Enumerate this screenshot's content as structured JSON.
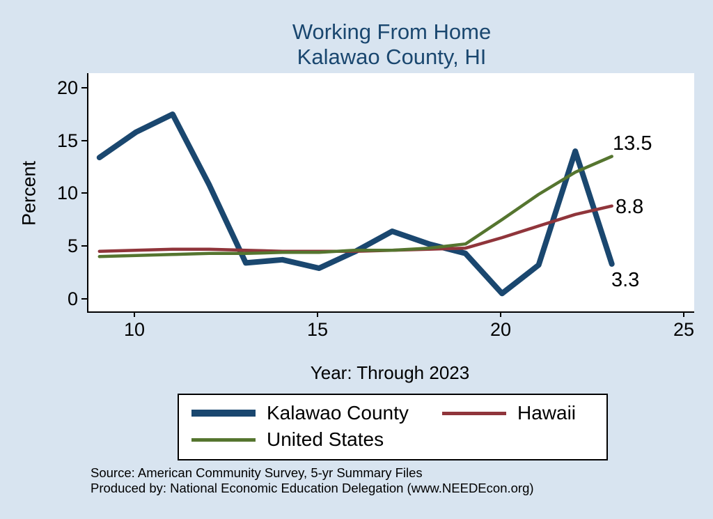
{
  "title": {
    "line1": "Working From Home",
    "line2": "Kalawao County, HI"
  },
  "axes": {
    "y_label": "Percent",
    "x_label": "Year: Through 2023",
    "y_tick_labels": [
      "20",
      "15",
      "10",
      "5",
      "0"
    ],
    "x_tick_labels": [
      "10",
      "15",
      "20",
      "25"
    ]
  },
  "end_labels": {
    "united_states": "13.5",
    "hawaii": "8.8",
    "kalawao": "3.3"
  },
  "legend": {
    "items": [
      {
        "label": "Kalawao County"
      },
      {
        "label": "Hawaii"
      },
      {
        "label": "United States"
      }
    ]
  },
  "source": {
    "line1": "Source: American Community Survey, 5-yr Summary Files",
    "line2": "Produced by: National Economic Education Delegation (www.NEEDEcon.org)"
  },
  "colors": {
    "background": "#d8e4f0",
    "title_text": "#1a476f",
    "kalawao_line": "#1a476f",
    "hawaii_line": "#90353b",
    "us_line": "#55752f"
  },
  "chart_data": {
    "type": "line",
    "title": "Working From Home — Kalawao County, HI",
    "xlabel": "Year: Through 2023",
    "ylabel": "Percent",
    "x": [
      9,
      10,
      11,
      12,
      13,
      14,
      15,
      16,
      17,
      18,
      19,
      20,
      21,
      22,
      23
    ],
    "series": [
      {
        "name": "Kalawao County",
        "color": "#1a476f",
        "width": 8,
        "values": [
          13.4,
          15.8,
          17.5,
          10.8,
          3.4,
          3.7,
          2.9,
          4.5,
          6.4,
          5.2,
          4.3,
          0.5,
          3.2,
          14.0,
          3.3
        ]
      },
      {
        "name": "Hawaii",
        "color": "#90353b",
        "width": 4.5,
        "values": [
          4.5,
          4.6,
          4.7,
          4.7,
          4.6,
          4.5,
          4.5,
          4.5,
          4.6,
          4.7,
          4.8,
          5.8,
          6.9,
          8.0,
          8.8
        ]
      },
      {
        "name": "United States",
        "color": "#55752f",
        "width": 4.5,
        "values": [
          4.0,
          4.1,
          4.2,
          4.3,
          4.3,
          4.4,
          4.4,
          4.6,
          4.6,
          4.8,
          5.2,
          7.5,
          9.9,
          12.0,
          13.5
        ]
      }
    ],
    "xlim": [
      8.7,
      25.25
    ],
    "ylim": [
      -1.2,
      21.4
    ],
    "x_ticks": [
      10,
      15,
      20,
      25
    ],
    "y_ticks": [
      0,
      5,
      10,
      15,
      20
    ],
    "grid": false,
    "legend_position": "bottom"
  }
}
